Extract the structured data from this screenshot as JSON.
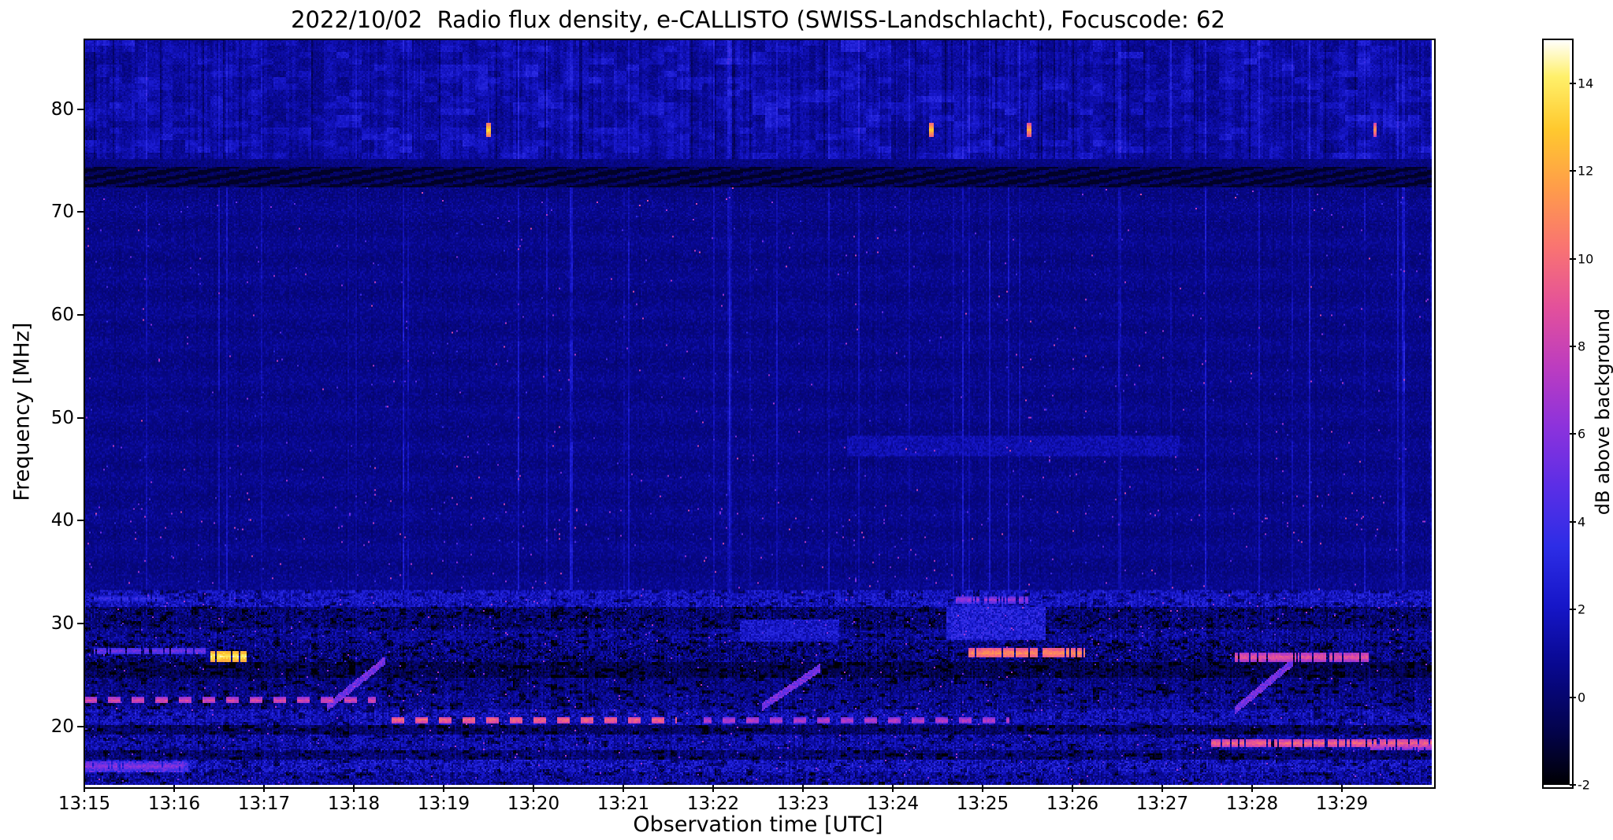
{
  "chart_data": {
    "type": "heatmap",
    "chart_kind": "radio-spectrogram",
    "title": "2022/10/02  Radio flux density, e-CALLISTO (SWISS-Landschlacht), Focuscode: 62",
    "xlabel": "Observation time [UTC]",
    "ylabel": "Frequency [MHz]",
    "x_tick_labels": [
      "13:15",
      "13:16",
      "13:17",
      "13:18",
      "13:19",
      "13:20",
      "13:21",
      "13:22",
      "13:23",
      "13:24",
      "13:25",
      "13:26",
      "13:27",
      "13:28",
      "13:29"
    ],
    "x_range_utc": [
      "13:15",
      "13:30"
    ],
    "x_total_minutes": 15,
    "y_ticks_mhz": [
      20,
      30,
      40,
      50,
      60,
      70,
      80
    ],
    "y_range_mhz": [
      14.3,
      86.8
    ],
    "grid": false,
    "colorbar": {
      "label": "dB above background",
      "ticks": [
        -2,
        0,
        2,
        4,
        6,
        8,
        10,
        12,
        14
      ],
      "range_db": [
        -2,
        15
      ],
      "colormap": "gnuplot2-like (black-blue-magenta-orange-yellow-white)",
      "stops": [
        [
          0,
          "#000003"
        ],
        [
          0.07,
          "#03034a"
        ],
        [
          0.16,
          "#08088f"
        ],
        [
          0.24,
          "#1616c8"
        ],
        [
          0.32,
          "#2d2de6"
        ],
        [
          0.4,
          "#5b2ee6"
        ],
        [
          0.48,
          "#8c32dc"
        ],
        [
          0.56,
          "#bc3cc0"
        ],
        [
          0.64,
          "#e3509b"
        ],
        [
          0.72,
          "#f97372"
        ],
        [
          0.8,
          "#ff9c4a"
        ],
        [
          0.88,
          "#ffc92e"
        ],
        [
          0.95,
          "#fff06a"
        ],
        [
          1,
          "#ffffff"
        ]
      ]
    },
    "background_level_db": 0.5,
    "regions": {
      "upper_blotchy_band_mhz": [
        75.2,
        86.8
      ],
      "dark_lane_mhz": [
        72.4,
        74.4
      ],
      "quiet_band_mhz": [
        33.2,
        72.4
      ],
      "rfi_band_mhz": [
        14.3,
        33.2
      ]
    },
    "bursts_78mhz": [
      {
        "time_utc": "13:19:30",
        "t_min": 4.5,
        "freq_mhz": 78.0,
        "peak_db": 13.5
      },
      {
        "time_utc": "13:24:26",
        "t_min": 9.43,
        "freq_mhz": 78.0,
        "peak_db": 13.0
      },
      {
        "time_utc": "13:25:31",
        "t_min": 10.52,
        "freq_mhz": 78.0,
        "peak_db": 12.0
      },
      {
        "time_utc": "13:29:22",
        "t_min": 14.37,
        "freq_mhz": 78.0,
        "peak_db": 11.5
      }
    ],
    "rfi_bands": [
      {
        "f": [
          31.6,
          33.2
        ],
        "base": 1.5,
        "noise": 1.3,
        "lines": [
          {
            "fc": 32.4,
            "hw": 0.4,
            "t": [
              0.1,
              0.9
            ],
            "db": 3.2
          },
          {
            "fc": 32.3,
            "hw": 0.35,
            "t": [
              9.7,
              10.5
            ],
            "db": 6.0
          }
        ]
      },
      {
        "f": [
          29.4,
          31.6
        ],
        "base": -0.3,
        "noise": 1.3
      },
      {
        "f": [
          28.2,
          29.4
        ],
        "base": 0.5,
        "noise": 1.2
      },
      {
        "f": [
          26.2,
          28.2
        ],
        "base": -0.1,
        "noise": 1.5,
        "lines": [
          {
            "fc": 27.3,
            "hw": 0.3,
            "t": [
              0.1,
              1.35
            ],
            "db": 5.0
          },
          {
            "fc": 26.8,
            "hw": 0.5,
            "t": [
              1.4,
              1.8
            ],
            "db": 13.5
          },
          {
            "fc": 27.1,
            "hw": 0.45,
            "t": [
              9.85,
              11.15
            ],
            "db": 10.5
          },
          {
            "fc": 26.7,
            "hw": 0.4,
            "t": [
              12.75,
              14.3
            ],
            "db": 8.5
          }
        ]
      },
      {
        "f": [
          24.7,
          26.2
        ],
        "base": -0.9,
        "noise": 1.0
      },
      {
        "f": [
          23.1,
          24.7
        ],
        "base": 0.1,
        "noise": 1.1
      },
      {
        "f": [
          21.7,
          23.1
        ],
        "base": 0.35,
        "noise": 1.2,
        "lines": [
          {
            "fc": 22.5,
            "hw": 0.32,
            "t": [
              0.0,
              3.25
            ],
            "db": 7.8,
            "dash": true
          }
        ]
      },
      {
        "f": [
          20.1,
          21.7
        ],
        "base": 1.2,
        "noise": 1.3,
        "lines": [
          {
            "fc": 20.6,
            "hw": 0.34,
            "t": [
              3.35,
              6.6
            ],
            "db": 9.2,
            "dash": true
          },
          {
            "fc": 20.55,
            "hw": 0.3,
            "t": [
              6.9,
              10.3
            ],
            "db": 7.0,
            "dash": true
          }
        ]
      },
      {
        "f": [
          19.2,
          20.1
        ],
        "base": -0.5,
        "noise": 1.0
      },
      {
        "f": [
          17.7,
          19.2
        ],
        "base": 0.9,
        "noise": 1.3,
        "lines": [
          {
            "fc": 18.35,
            "hw": 0.42,
            "t": [
              12.55,
              15.0
            ],
            "db": 9.0
          },
          {
            "fc": 18.0,
            "hw": 0.3,
            "t": [
              14.3,
              15.0
            ],
            "db": 7.0
          }
        ]
      },
      {
        "f": [
          16.7,
          17.7
        ],
        "base": -0.2,
        "noise": 1.1
      },
      {
        "f": [
          15.5,
          16.7
        ],
        "base": 1.3,
        "noise": 1.5,
        "lines": [
          {
            "fc": 16.1,
            "hw": 0.4,
            "t": [
              0.0,
              1.1
            ],
            "db": 5.5
          }
        ]
      },
      {
        "f": [
          14.3,
          15.5
        ],
        "base": 0.6,
        "noise": 1.4
      }
    ],
    "rfi_diagonals": [
      {
        "t": [
          2.7,
          3.35
        ],
        "f": [
          21.8,
          26.4
        ],
        "db": 5.0
      },
      {
        "t": [
          7.55,
          8.2
        ],
        "f": [
          21.9,
          25.7
        ],
        "db": 5.0
      },
      {
        "t": [
          12.8,
          13.45
        ],
        "f": [
          21.5,
          26.2
        ],
        "db": 5.0
      }
    ],
    "patches": [
      {
        "t": [
          9.6,
          10.7
        ],
        "f": [
          28.4,
          31.6
        ],
        "db": 2.7
      },
      {
        "t": [
          7.3,
          8.4
        ],
        "f": [
          28.2,
          30.3
        ],
        "db": 2.2
      },
      {
        "t": [
          8.5,
          12.2
        ],
        "f": [
          46.3,
          48.2
        ],
        "db": 1.5
      },
      {
        "t": [
          0.0,
          1.15
        ],
        "f": [
          15.5,
          16.6
        ],
        "db": 4.0
      }
    ]
  }
}
